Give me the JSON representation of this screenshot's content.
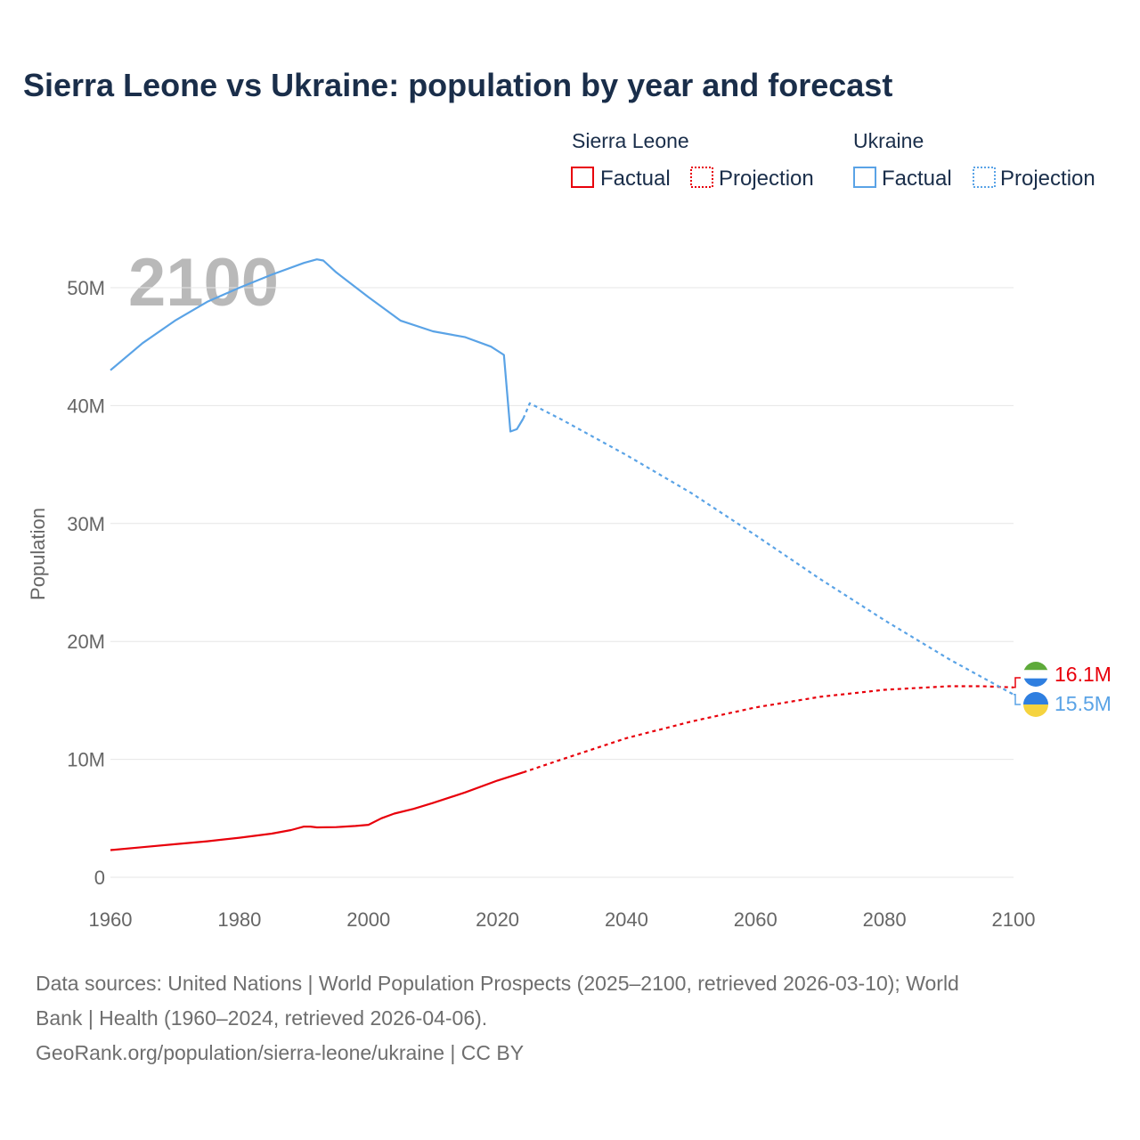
{
  "title": "Sierra Leone vs Ukraine: population by year and forecast",
  "year_watermark": "2100",
  "legend": {
    "groups": [
      {
        "name": "Sierra Leone",
        "color": "#e8000b",
        "factual_label": "Factual",
        "projection_label": "Projection"
      },
      {
        "name": "Ukraine",
        "color": "#5aa3e6",
        "factual_label": "Factual",
        "projection_label": "Projection"
      }
    ]
  },
  "footer": {
    "line1": "Data sources: United Nations | World Population Prospects (2025–2100, retrieved 2026-03-10); World",
    "line2": "Bank | Health (1960–2024, retrieved 2026-04-06).",
    "line3": "GeoRank.org/population/sierra-leone/ukraine | CC BY"
  },
  "end_labels": [
    {
      "country": "Sierra Leone",
      "text": "16.1M",
      "color": "#e8000b",
      "flag_icon": "sierra-leone-flag-icon"
    },
    {
      "country": "Ukraine",
      "text": "15.5M",
      "color": "#5aa3e6",
      "flag_icon": "ukraine-flag-icon"
    }
  ],
  "chart_data": {
    "type": "line",
    "title": "Sierra Leone vs Ukraine: population by year and forecast",
    "xlabel": "",
    "ylabel": "Population",
    "xlim": [
      1960,
      2100
    ],
    "ylim": [
      0,
      53000000
    ],
    "x_ticks": [
      1960,
      1980,
      2000,
      2020,
      2040,
      2060,
      2080,
      2100
    ],
    "x_tick_labels": [
      "1960",
      "1980",
      "2000",
      "2020",
      "2040",
      "2060",
      "2080",
      "2100"
    ],
    "y_ticks": [
      0,
      10000000,
      20000000,
      30000000,
      40000000,
      50000000
    ],
    "y_tick_labels": [
      "0",
      "10M",
      "20M",
      "30M",
      "40M",
      "50M"
    ],
    "grid": true,
    "legend_position": "top-right",
    "series": [
      {
        "name": "Sierra Leone",
        "kind": "Factual",
        "color": "#e8000b",
        "x": [
          1960,
          1965,
          1970,
          1975,
          1980,
          1985,
          1988,
          1990,
          1991,
          1992,
          1995,
          1998,
          2000,
          2002,
          2004,
          2007,
          2010,
          2015,
          2020,
          2024
        ],
        "y": [
          2300000,
          2550000,
          2800000,
          3050000,
          3350000,
          3700000,
          4000000,
          4300000,
          4300000,
          4230000,
          4250000,
          4350000,
          4450000,
          5000000,
          5400000,
          5800000,
          6300000,
          7200000,
          8200000,
          8900000
        ]
      },
      {
        "name": "Sierra Leone",
        "kind": "Projection",
        "color": "#e8000b",
        "x": [
          2024,
          2030,
          2040,
          2050,
          2060,
          2070,
          2080,
          2090,
          2095,
          2100
        ],
        "y": [
          8900000,
          10000000,
          11800000,
          13200000,
          14400000,
          15300000,
          15900000,
          16200000,
          16200000,
          16100000
        ]
      },
      {
        "name": "Ukraine",
        "kind": "Factual",
        "color": "#5aa3e6",
        "x": [
          1960,
          1965,
          1970,
          1975,
          1980,
          1985,
          1990,
          1992,
          1993,
          1995,
          2000,
          2003,
          2005,
          2010,
          2015,
          2019,
          2021,
          2022,
          2023,
          2024
        ],
        "y": [
          43000000,
          45300000,
          47200000,
          48800000,
          50000000,
          51100000,
          52100000,
          52400000,
          52300000,
          51300000,
          49200000,
          48000000,
          47200000,
          46300000,
          45800000,
          45000000,
          44300000,
          37800000,
          38000000,
          38900000
        ]
      },
      {
        "name": "Ukraine",
        "kind": "Projection",
        "color": "#5aa3e6",
        "x": [
          2024,
          2025,
          2030,
          2040,
          2050,
          2060,
          2070,
          2080,
          2090,
          2100
        ],
        "y": [
          38900000,
          40200000,
          38800000,
          35800000,
          32600000,
          29000000,
          25300000,
          21800000,
          18500000,
          15500000
        ]
      }
    ]
  }
}
